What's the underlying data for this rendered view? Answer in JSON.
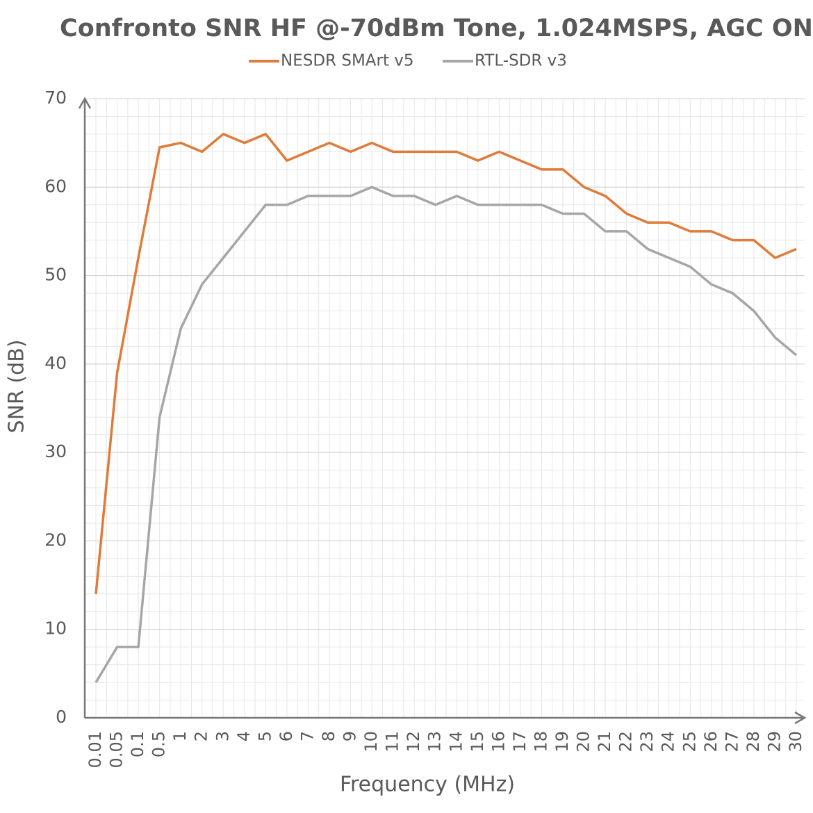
{
  "chart_data": {
    "type": "line",
    "title": "Confronto SNR HF @-70dBm Tone, 1.024MSPS, AGC ON",
    "x_label": "Frequency (MHz)",
    "y_label": "SNR (dB)",
    "categories": [
      "0.01",
      "0.05",
      "0.1",
      "0.5",
      "1",
      "2",
      "3",
      "4",
      "5",
      "6",
      "7",
      "8",
      "9",
      "10",
      "11",
      "12",
      "13",
      "14",
      "15",
      "16",
      "17",
      "18",
      "19",
      "20",
      "21",
      "22",
      "23",
      "24",
      "25",
      "26",
      "27",
      "28",
      "29",
      "30"
    ],
    "series": [
      {
        "name": "NESDR SMArt v5",
        "color": "#e07b39",
        "values": [
          14,
          39,
          52,
          64.5,
          65,
          64,
          66,
          65,
          66,
          63,
          64,
          65,
          64,
          65,
          64,
          64,
          64,
          64,
          63,
          64,
          63,
          62,
          62,
          60,
          59,
          57,
          56,
          56,
          55,
          55,
          54,
          54,
          52,
          53
        ]
      },
      {
        "name": "RTL-SDR v3",
        "color": "#a6a6a6",
        "values": [
          4,
          8,
          8,
          34,
          44,
          49,
          52,
          55,
          58,
          58,
          59,
          59,
          59,
          60,
          59,
          59,
          58,
          59,
          58,
          58,
          58,
          58,
          57,
          57,
          55,
          55,
          53,
          52,
          51,
          49,
          48,
          46,
          43,
          41
        ]
      }
    ],
    "ylim": [
      0,
      70
    ],
    "yticks": [
      0,
      10,
      20,
      30,
      40,
      50,
      60,
      70
    ],
    "grid": true,
    "legend": "top"
  }
}
